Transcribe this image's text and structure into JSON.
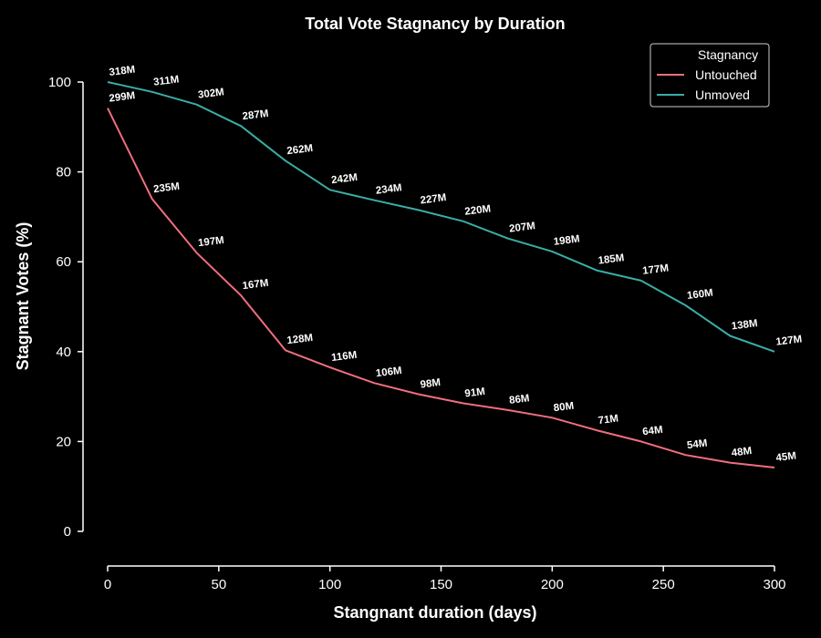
{
  "chart_data": {
    "type": "line",
    "title": "Total Vote Stagnancy by Duration",
    "xlabel": "Stangnant duration (days)",
    "ylabel": "Stagnant Votes (%)",
    "xlim": [
      0,
      300
    ],
    "ylim": [
      0,
      100
    ],
    "xticks": [
      0,
      50,
      100,
      150,
      200,
      250,
      300
    ],
    "yticks": [
      0,
      20,
      40,
      60,
      80,
      100
    ],
    "grid": false,
    "legend": {
      "title": "Stagnancy",
      "placement": "top-right"
    },
    "x": [
      0,
      20,
      40,
      60,
      80,
      100,
      120,
      140,
      160,
      180,
      200,
      220,
      240,
      260,
      280,
      300
    ],
    "series": [
      {
        "name": "Untouched",
        "color": "#f06e7e",
        "values": [
          94.2,
          74,
          62,
          52.5,
          40.3,
          36.5,
          33,
          30.5,
          28.5,
          27,
          25.3,
          22.5,
          20,
          17,
          15.3,
          14.2
        ],
        "labels": [
          "299M",
          "235M",
          "197M",
          "167M",
          "128M",
          "116M",
          "106M",
          "98M",
          "91M",
          "86M",
          "80M",
          "71M",
          "64M",
          "54M",
          "48M",
          "45M"
        ]
      },
      {
        "name": "Unmoved",
        "color": "#3aada6",
        "values": [
          100,
          97.8,
          95,
          90.2,
          82.5,
          76,
          73.7,
          71.5,
          69,
          65.2,
          62.3,
          58.1,
          55.8,
          50.3,
          43.5,
          40
        ],
        "labels": [
          "318M",
          "311M",
          "302M",
          "287M",
          "262M",
          "242M",
          "234M",
          "227M",
          "220M",
          "207M",
          "198M",
          "185M",
          "177M",
          "160M",
          "138M",
          "127M"
        ]
      }
    ]
  }
}
